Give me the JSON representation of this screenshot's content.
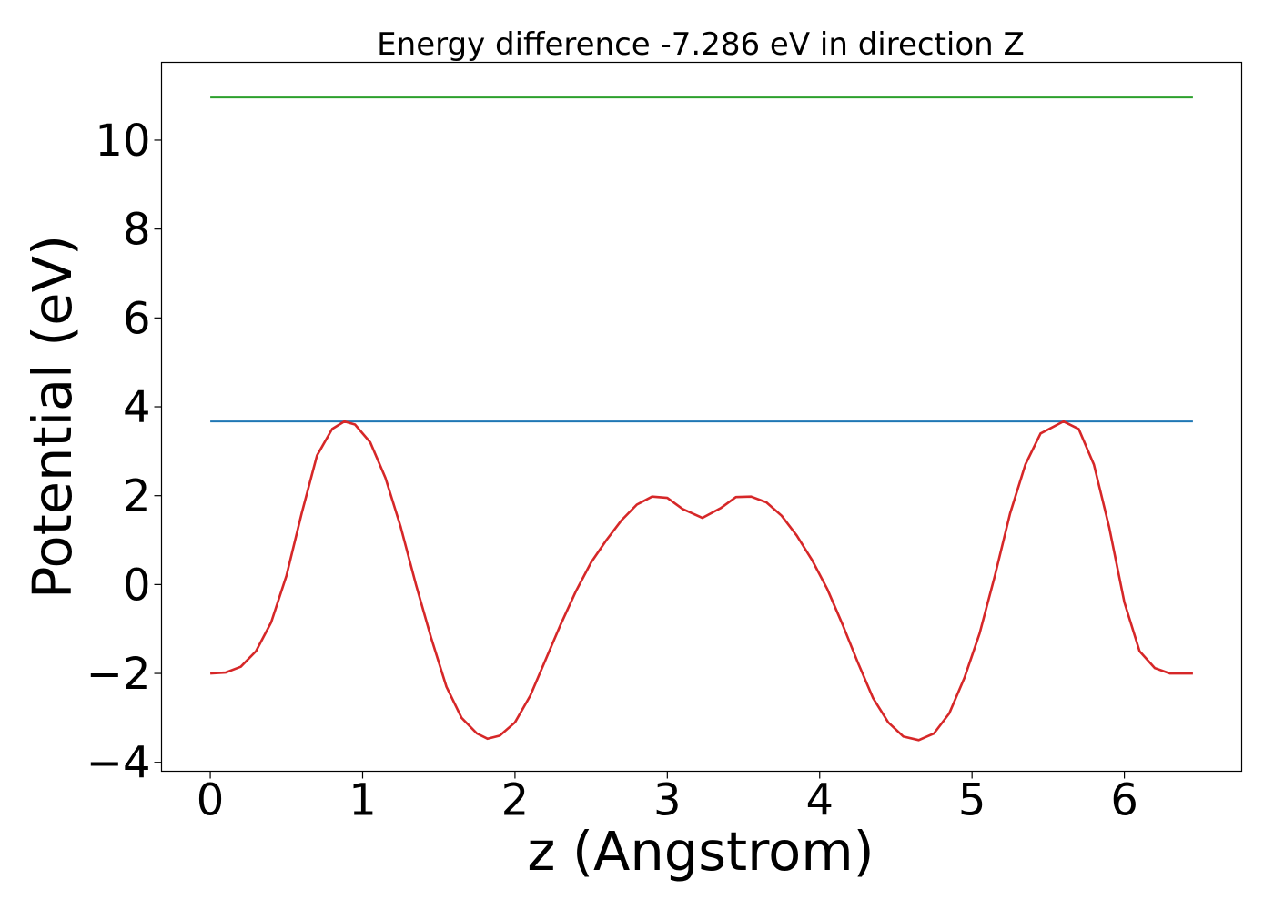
{
  "chart_data": {
    "type": "line",
    "title": "Energy difference -7.286 eV in direction Z",
    "xlabel": "z (Angstrom)",
    "ylabel": "Potential (eV)",
    "xlim": [
      -0.32,
      6.77
    ],
    "ylim": [
      -4.2,
      11.75
    ],
    "xticks": [
      0,
      1,
      2,
      3,
      4,
      5,
      6
    ],
    "yticks": [
      -4,
      -2,
      0,
      2,
      4,
      6,
      8,
      10
    ],
    "xtick_labels": [
      "0",
      "1",
      "2",
      "3",
      "4",
      "5",
      "6"
    ],
    "ytick_labels": [
      "−4",
      "−2",
      "0",
      "2",
      "4",
      "6",
      "8",
      "10"
    ],
    "grid": false,
    "legend": "none",
    "series": [
      {
        "color": "#2ca02c",
        "style": "horizontal",
        "x": [
          0,
          6.45
        ],
        "y": [
          10.96,
          10.96
        ]
      },
      {
        "color": "#1f77b4",
        "style": "horizontal",
        "x": [
          0,
          6.45
        ],
        "y": [
          3.67,
          3.67
        ]
      },
      {
        "color": "#d62728",
        "style": "curve",
        "x": [
          0,
          0.1,
          0.2,
          0.3,
          0.4,
          0.5,
          0.6,
          0.7,
          0.8,
          0.88,
          0.95,
          1.05,
          1.15,
          1.25,
          1.35,
          1.45,
          1.55,
          1.65,
          1.75,
          1.82,
          1.9,
          2.0,
          2.1,
          2.2,
          2.3,
          2.4,
          2.5,
          2.6,
          2.7,
          2.8,
          2.9,
          3.0,
          3.1,
          3.23,
          3.35,
          3.45,
          3.55,
          3.65,
          3.75,
          3.85,
          3.95,
          4.05,
          4.15,
          4.25,
          4.35,
          4.45,
          4.55,
          4.65,
          4.75,
          4.85,
          4.95,
          5.05,
          5.15,
          5.25,
          5.35,
          5.45,
          5.6,
          5.7,
          5.8,
          5.9,
          6.0,
          6.1,
          6.2,
          6.3,
          6.45
        ],
        "y": [
          -2.0,
          -1.98,
          -1.85,
          -1.5,
          -0.85,
          0.2,
          1.6,
          2.9,
          3.5,
          3.67,
          3.6,
          3.2,
          2.4,
          1.3,
          0.0,
          -1.2,
          -2.3,
          -3.0,
          -3.35,
          -3.47,
          -3.4,
          -3.1,
          -2.5,
          -1.7,
          -0.9,
          -0.15,
          0.5,
          1.0,
          1.45,
          1.8,
          1.98,
          1.95,
          1.7,
          1.5,
          1.72,
          1.97,
          1.98,
          1.85,
          1.55,
          1.1,
          0.55,
          -0.1,
          -0.9,
          -1.75,
          -2.55,
          -3.1,
          -3.42,
          -3.5,
          -3.35,
          -2.9,
          -2.1,
          -1.1,
          0.2,
          1.6,
          2.7,
          3.4,
          3.67,
          3.5,
          2.7,
          1.3,
          -0.4,
          -1.5,
          -1.88,
          -2.0,
          -2.0
        ]
      }
    ]
  }
}
